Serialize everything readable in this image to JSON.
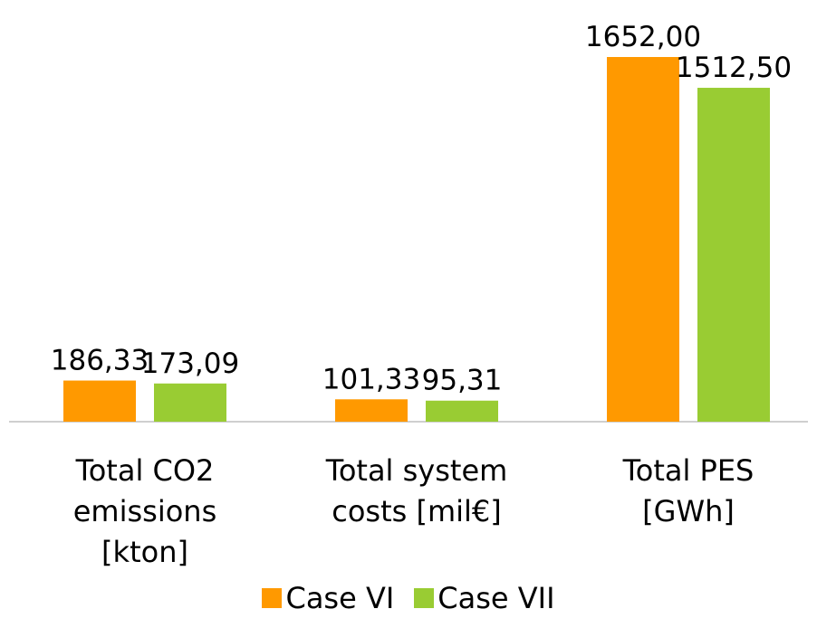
{
  "chart_data": {
    "type": "bar",
    "categories": [
      "Total CO2 emissions [kton]",
      "Total system costs [mil€]",
      "Total PES [GWh]"
    ],
    "series": [
      {
        "name": "Case VI",
        "color": "#ff9900",
        "values": [
          186.33,
          101.33,
          1652.0
        ],
        "value_labels": [
          "186,33",
          "101,33",
          "1652,00"
        ]
      },
      {
        "name": "Case VII",
        "color": "#99cc33",
        "values": [
          173.09,
          95.31,
          1512.5
        ],
        "value_labels": [
          "173,09",
          "95,31",
          "1512,50"
        ]
      }
    ]
  }
}
